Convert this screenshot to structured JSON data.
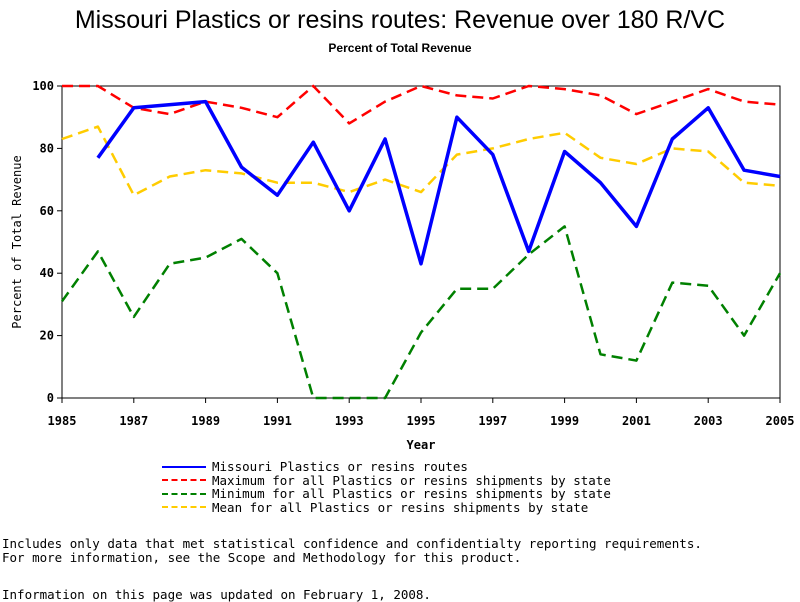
{
  "chart_data": {
    "type": "line",
    "title": "Missouri Plastics or resins routes: Revenue over 180 R/VC",
    "subtitle": "Percent of Total Revenue",
    "xlabel": "Year",
    "ylabel": "Percent of Total Revenue",
    "xlim": [
      1985,
      2005
    ],
    "ylim": [
      0,
      100
    ],
    "x_ticks": [
      "1985",
      "1987",
      "1989",
      "1991",
      "1993",
      "1995",
      "1997",
      "1999",
      "2001",
      "2003",
      "2005"
    ],
    "y_ticks": [
      "0",
      "20",
      "40",
      "60",
      "80",
      "100"
    ],
    "grid": false,
    "legend_position": "bottom",
    "series": [
      {
        "name": "Missouri Plastics or resins routes",
        "color": "#0000ff",
        "style": "solid",
        "x": [
          1986,
          1987,
          1989,
          1990,
          1991,
          1992,
          1993,
          1994,
          1995,
          1996,
          1997,
          1998,
          1999,
          2000,
          2001,
          2002,
          2003,
          2004,
          2005
        ],
        "values": [
          77,
          93,
          95,
          74,
          65,
          82,
          60,
          83,
          43,
          90,
          78,
          47,
          79,
          69,
          55,
          83,
          93,
          73,
          71
        ]
      },
      {
        "name": "Maximum for all Plastics or resins shipments by state",
        "color": "#ff0000",
        "style": "dashed",
        "x": [
          1985,
          1986,
          1987,
          1988,
          1989,
          1990,
          1991,
          1992,
          1993,
          1994,
          1995,
          1996,
          1997,
          1998,
          1999,
          2000,
          2001,
          2002,
          2003,
          2004,
          2005
        ],
        "values": [
          100,
          100,
          93,
          91,
          95,
          93,
          90,
          100,
          88,
          95,
          100,
          97,
          96,
          100,
          99,
          97,
          91,
          95,
          99,
          95,
          94
        ]
      },
      {
        "name": "Minimum for all Plastics or resins shipments by state",
        "color": "#008000",
        "style": "dashed",
        "x": [
          1985,
          1986,
          1987,
          1988,
          1989,
          1990,
          1991,
          1992,
          1993,
          1994,
          1995,
          1996,
          1997,
          1998,
          1999,
          2000,
          2001,
          2002,
          2003,
          2004,
          2005
        ],
        "values": [
          31,
          47,
          26,
          43,
          45,
          51,
          40,
          0,
          0,
          0,
          21,
          35,
          35,
          46,
          55,
          14,
          12,
          37,
          36,
          20,
          40
        ]
      },
      {
        "name": "Mean for all Plastics or resins shipments by state",
        "color": "#ffcc00",
        "style": "dashed",
        "x": [
          1985,
          1986,
          1987,
          1988,
          1989,
          1990,
          1991,
          1992,
          1993,
          1994,
          1995,
          1996,
          1997,
          1998,
          1999,
          2000,
          2001,
          2002,
          2003,
          2004,
          2005
        ],
        "values": [
          83,
          87,
          65,
          71,
          73,
          72,
          69,
          69,
          66,
          70,
          66,
          78,
          80,
          83,
          85,
          77,
          75,
          80,
          79,
          69,
          68
        ]
      }
    ]
  },
  "footnotes": {
    "line1": "Includes only data that met statistical confidence and confidentialty reporting requirements.",
    "line2": "For more information, see the Scope and Methodology for this product.",
    "line3": "Information on this page was updated on February 1, 2008."
  }
}
